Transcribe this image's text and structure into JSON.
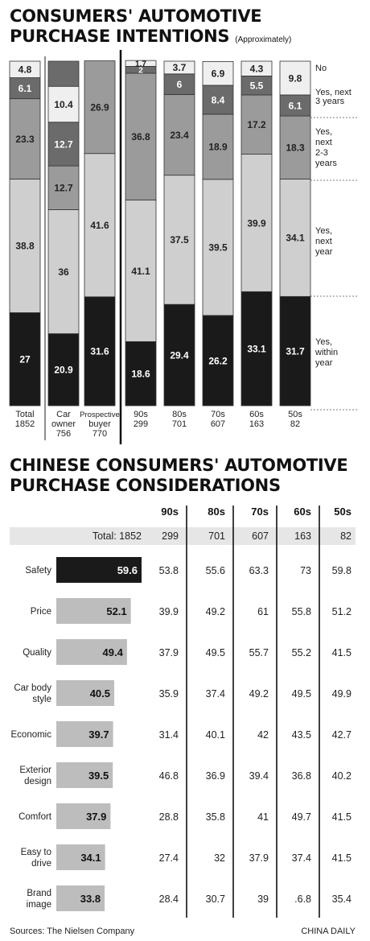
{
  "title1": "CONSUMERS' AUTOMOTIVE",
  "title1b": "PURCHASE INTENTIONS",
  "title1_note": "(Approximately)",
  "title2": "CHINESE CONSUMERS' AUTOMOTIVE",
  "title2b": "PURCHASE CONSIDERATIONS",
  "source": "Sources: The Nielsen Company",
  "credit": "CHINA DAILY",
  "colors": {
    "black": "#1a1a1a",
    "dark": "#6b6b6b",
    "mid": "#9b9b9b",
    "light": "#cfcfcf",
    "pale": "#efefef"
  },
  "chart_data": [
    {
      "type": "bar",
      "stacked": true,
      "legend": [
        "No",
        "Yes, next 3 years",
        "Yes, next 2-3 years",
        "Yes, next year",
        "Yes, within year"
      ],
      "legend_lines": [
        [
          "No"
        ],
        [
          "Yes, next",
          "3 years"
        ],
        [
          "Yes,",
          "next",
          "2-3",
          "years"
        ],
        [
          "Yes,",
          "next",
          "year"
        ],
        [
          "Yes,",
          "within",
          "year"
        ]
      ],
      "categories": [
        {
          "label": [
            "Total",
            "1852"
          ]
        },
        {
          "label": [
            "Car",
            "owner",
            "756"
          ]
        },
        {
          "label": [
            "Prospective",
            "buyer",
            "770"
          ]
        },
        {
          "label": [
            "90s",
            "299"
          ]
        },
        {
          "label": [
            "80s",
            "701"
          ]
        },
        {
          "label": [
            "70s",
            "607"
          ]
        },
        {
          "label": [
            "60s",
            "163"
          ]
        },
        {
          "label": [
            "50s",
            "82"
          ]
        }
      ],
      "series": [
        {
          "name": "Yes, within year",
          "values": [
            27,
            20.9,
            31.6,
            18.6,
            29.4,
            26.2,
            33.1,
            31.7
          ]
        },
        {
          "name": "Yes, next year",
          "values": [
            38.8,
            36,
            41.6,
            41.1,
            37.5,
            39.5,
            39.9,
            34.1
          ]
        },
        {
          "name": "Yes, next 2-3 years",
          "values": [
            23.3,
            12.7,
            26.9,
            36.8,
            23.4,
            18.9,
            17.2,
            18.3
          ]
        },
        {
          "name": "Yes, next 3 years",
          "values": [
            6.1,
            12.7,
            null,
            2,
            6,
            8.4,
            5.5,
            6.1
          ]
        },
        {
          "name": "No",
          "values": [
            4.8,
            10.4,
            null,
            1.7,
            3.7,
            6.9,
            4.3,
            9.8
          ]
        }
      ]
    },
    {
      "type": "table",
      "columns": [
        "90s",
        "80s",
        "70s",
        "60s",
        "50s"
      ],
      "total_label": "Total: 1852",
      "totals": [
        "299",
        "701",
        "607",
        "163",
        "82"
      ],
      "rows": [
        {
          "label": [
            "Safety"
          ],
          "value": 59.6,
          "label_value": "59.6",
          "cells": [
            "53.8",
            "55.6",
            "63.3",
            "73",
            "59.8"
          ]
        },
        {
          "label": [
            "Price"
          ],
          "value": 52.1,
          "label_value": "52.1",
          "cells": [
            "39.9",
            "49.2",
            "61",
            "55.8",
            "51.2"
          ]
        },
        {
          "label": [
            "Quality"
          ],
          "value": 49.4,
          "label_value": "49.4",
          "cells": [
            "37.9",
            "49.5",
            "55.7",
            "55.2",
            "41.5"
          ]
        },
        {
          "label": [
            "Car body",
            "style"
          ],
          "value": 40.5,
          "label_value": "40.5",
          "cells": [
            "35.9",
            "37.4",
            "49.2",
            "49.5",
            "49.9"
          ]
        },
        {
          "label": [
            "Economic"
          ],
          "value": 39.7,
          "label_value": "39.7",
          "cells": [
            "31.4",
            "40.1",
            "42",
            "43.5",
            "42.7"
          ]
        },
        {
          "label": [
            "Exterior",
            "design"
          ],
          "value": 39.5,
          "label_value": "39.5",
          "cells": [
            "46.8",
            "36.9",
            "39.4",
            "36.8",
            "40.2"
          ]
        },
        {
          "label": [
            "Comfort"
          ],
          "value": 37.9,
          "label_value": "37.9",
          "cells": [
            "28.8",
            "35.8",
            "41",
            "49.7",
            "41.5"
          ]
        },
        {
          "label": [
            "Easy to",
            "drive"
          ],
          "value": 34.1,
          "label_value": "34.1",
          "cells": [
            "27.4",
            "32",
            "37.9",
            "37.4",
            "41.5"
          ]
        },
        {
          "label": [
            "Brand",
            "image"
          ],
          "value": 33.8,
          "label_value": "33.8",
          "cells": [
            "28.4",
            "30.7",
            "39",
            ".6.8",
            "35.4"
          ]
        }
      ]
    }
  ]
}
